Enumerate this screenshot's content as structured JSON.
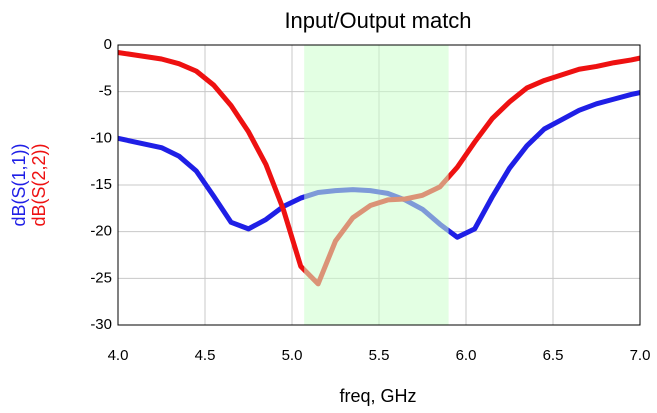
{
  "chart_data": {
    "type": "line",
    "title": "Input/Output match",
    "x_label": "freq, GHz",
    "x": [
      4.0,
      4.25,
      4.35,
      4.45,
      4.55,
      4.65,
      4.75,
      4.85,
      4.95,
      5.05,
      5.15,
      5.25,
      5.35,
      5.45,
      5.55,
      5.65,
      5.75,
      5.85,
      5.95,
      6.05,
      6.15,
      6.25,
      6.35,
      6.45,
      6.55,
      6.65,
      6.75,
      6.85,
      6.95,
      7.0
    ],
    "series": [
      {
        "name": "dB(S(1,1))",
        "color": "#1f1fe6",
        "values": [
          -10,
          -11,
          -11.9,
          -13.5,
          -16.2,
          -19,
          -19.7,
          -18.7,
          -17.3,
          -16.4,
          -15.8,
          -15.6,
          -15.5,
          -15.6,
          -15.9,
          -16.6,
          -17.6,
          -19.2,
          -20.6,
          -19.7,
          -16.3,
          -13.2,
          -10.8,
          -9.0,
          -8.0,
          -7.0,
          -6.3,
          -5.8,
          -5.3,
          -5.1
        ]
      },
      {
        "name": "dB(S(2,2))",
        "color": "#ee1111",
        "values": [
          -0.8,
          -1.5,
          -2,
          -2.8,
          -4.3,
          -6.5,
          -9.3,
          -12.8,
          -17.6,
          -23.7,
          -25.6,
          -21,
          -18.5,
          -17.2,
          -16.6,
          -16.5,
          -16.1,
          -15.2,
          -13.1,
          -10.4,
          -7.9,
          -6.1,
          -4.6,
          -3.8,
          -3.2,
          -2.6,
          -2.3,
          -1.9,
          -1.6,
          -1.4
        ]
      }
    ],
    "highlight": [
      5.07,
      5.9
    ],
    "highlight_color": "#ccffcc",
    "xlim": [
      4,
      7
    ],
    "xticks": [
      {
        "value": 4,
        "label": "4.0"
      },
      4.5,
      {
        "value": 5,
        "label": "5.0"
      },
      5.5,
      {
        "value": 6,
        "label": "6.0"
      },
      6.5,
      {
        "value": 7,
        "label": "7.0"
      }
    ],
    "ylim": [
      -30,
      0
    ],
    "yticks": [
      0,
      -5,
      -10,
      -15,
      -20,
      -25,
      -30
    ],
    "grid": true
  }
}
